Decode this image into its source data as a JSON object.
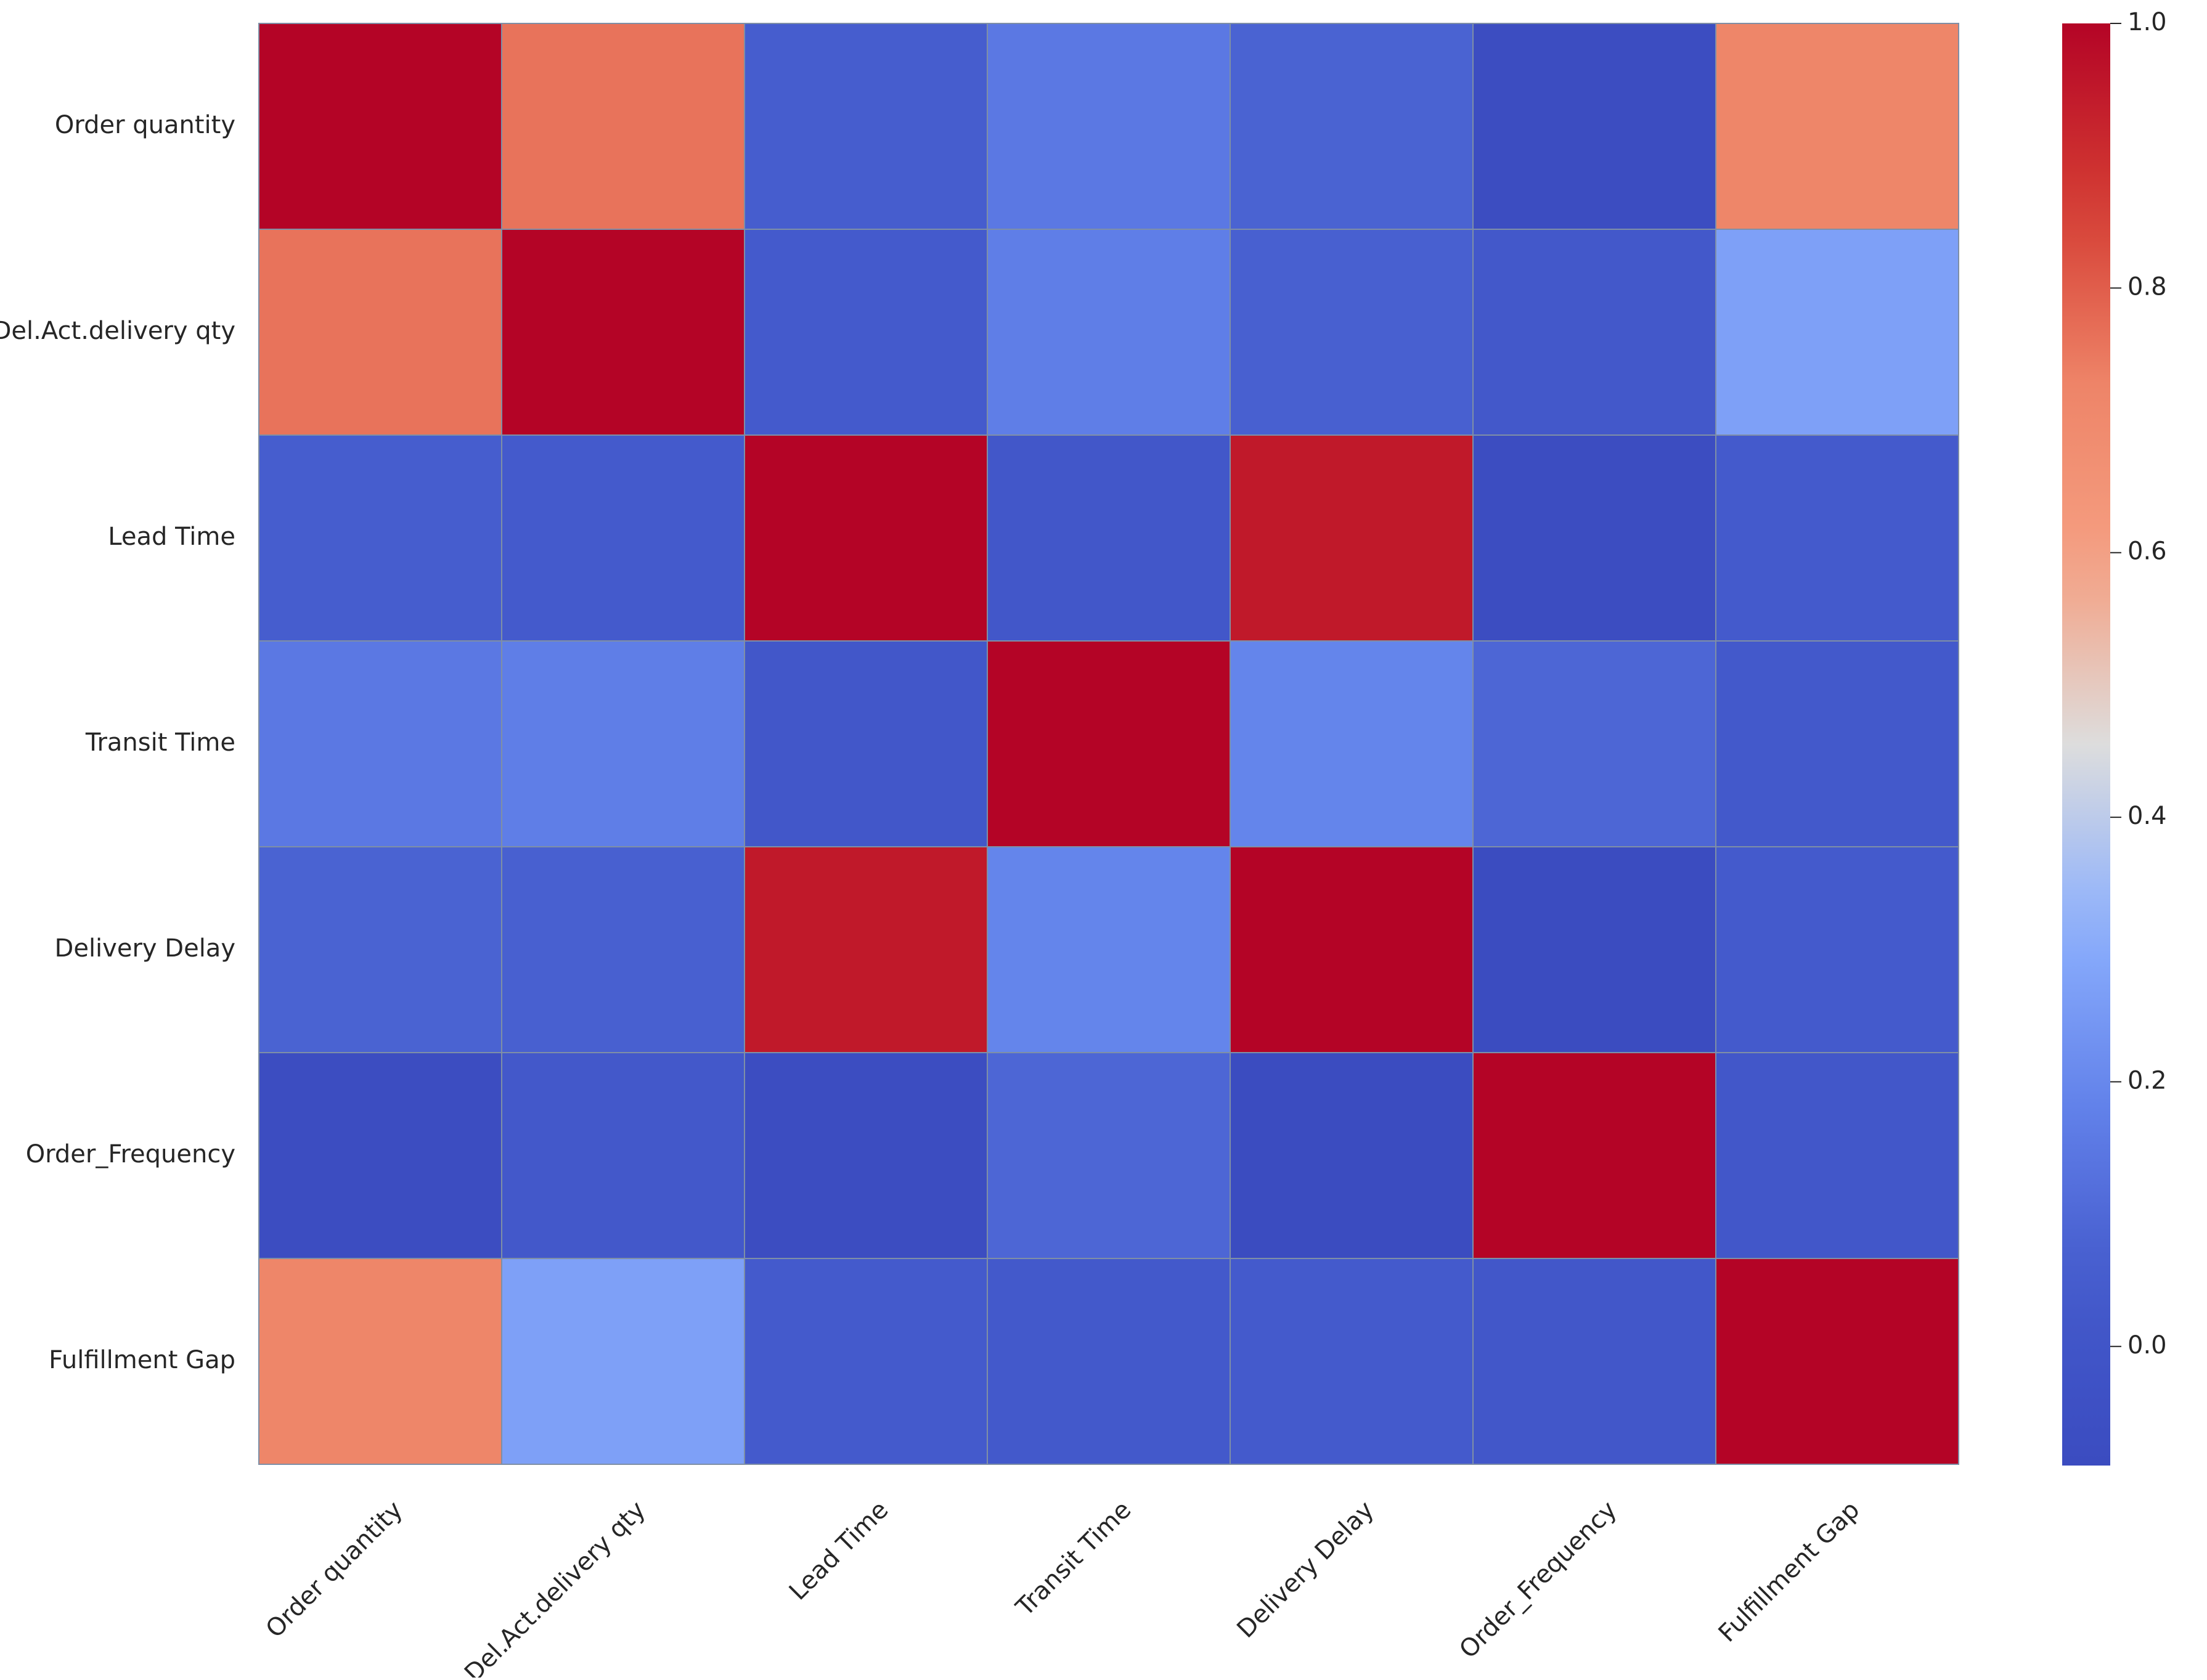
{
  "chart_data": {
    "type": "heatmap",
    "title": "",
    "xlabel": "",
    "ylabel": "",
    "rows": [
      "Order quantity",
      "Del.Act.delivery qty",
      "Lead Time",
      "Transit Time",
      "Delivery Delay",
      "Order_Frequency",
      "Fulfillment Gap"
    ],
    "cols": [
      "Order quantity",
      "Del.Act.delivery qty",
      "Lead Time",
      "Transit Time",
      "Delivery Delay",
      "Order_Frequency",
      "Fulfillment Gap"
    ],
    "values": [
      [
        1.0,
        0.76,
        0.06,
        0.15,
        0.08,
        -0.08,
        0.72
      ],
      [
        0.76,
        1.0,
        0.05,
        0.17,
        0.07,
        0.03,
        0.27
      ],
      [
        0.06,
        0.05,
        1.0,
        0.02,
        0.95,
        -0.08,
        0.05
      ],
      [
        0.15,
        0.17,
        0.02,
        1.0,
        0.19,
        0.09,
        0.04
      ],
      [
        0.08,
        0.07,
        0.95,
        0.19,
        1.0,
        -0.09,
        0.05
      ],
      [
        -0.08,
        0.03,
        -0.08,
        0.09,
        -0.09,
        1.0,
        0.02
      ],
      [
        0.72,
        0.27,
        0.05,
        0.04,
        0.05,
        0.02,
        1.0
      ]
    ],
    "colormap": "coolwarm",
    "colorbar": {
      "min": -0.09,
      "max": 1.0,
      "ticks": [
        0.0,
        0.2,
        0.4,
        0.6,
        0.8,
        1.0
      ],
      "tick_labels": [
        "0.0",
        "0.2",
        "0.4",
        "0.6",
        "0.8",
        "1.0"
      ]
    },
    "grid": false,
    "colors": {
      "low": "#3b4cc0",
      "mid": "#dddddd",
      "high": "#b40426",
      "cell_border": "#7f8fa6",
      "text": "#262626"
    }
  }
}
